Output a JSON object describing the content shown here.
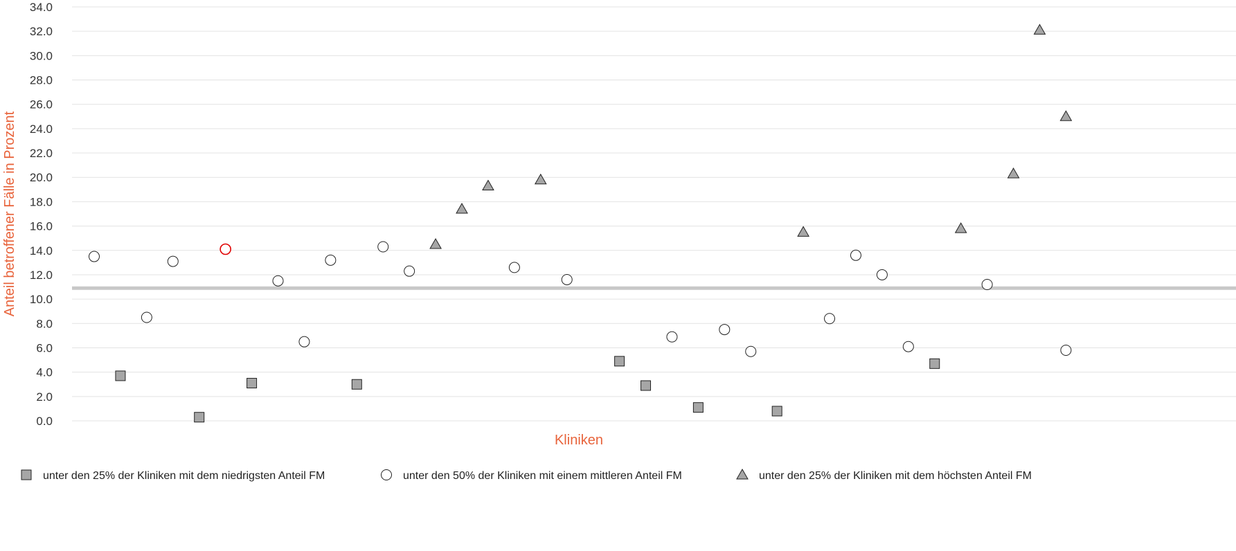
{
  "chart_data": {
    "type": "scatter",
    "title": "",
    "xlabel": "Kliniken",
    "ylabel": "Anteil betroffener Fälle in Prozent",
    "ylim": [
      0,
      34
    ],
    "yticks": [
      "0.0",
      "2.0",
      "4.0",
      "6.0",
      "8.0",
      "10.0",
      "12.0",
      "14.0",
      "16.0",
      "18.0",
      "20.0",
      "22.0",
      "24.0",
      "26.0",
      "28.0",
      "30.0",
      "32.0",
      "34.0"
    ],
    "grid": true,
    "reference_line": {
      "y": 10.9,
      "color": "#C8C8C8"
    },
    "highlight": {
      "x": 6,
      "y": 14.1,
      "color": "#E00000"
    },
    "legend_position": "bottom",
    "series": [
      {
        "name": "unter den 25% der Kliniken mit dem niedrigsten Anteil FM",
        "marker": "square",
        "fill": "#A6A6A6",
        "x": [
          2,
          5,
          7,
          11,
          21,
          22,
          24,
          27,
          33
        ],
        "values": [
          3.7,
          0.3,
          3.1,
          3.0,
          4.9,
          2.9,
          1.1,
          0.8,
          4.7
        ]
      },
      {
        "name": "unter den 50% der Kliniken mit einem mittleren Anteil FM",
        "marker": "circle",
        "fill": "#FFFFFF",
        "x": [
          1,
          3,
          4,
          6,
          8,
          9,
          10,
          12,
          13,
          17,
          19,
          23,
          25,
          26,
          29,
          30,
          31,
          32,
          35,
          38
        ],
        "values": [
          13.5,
          8.5,
          13.1,
          14.1,
          11.5,
          6.5,
          13.2,
          14.3,
          12.3,
          12.6,
          11.6,
          6.9,
          7.5,
          5.7,
          8.4,
          13.6,
          12.0,
          6.1,
          11.2,
          5.8
        ]
      },
      {
        "name": "unter den 25% der Kliniken mit dem höchsten Anteil FM",
        "marker": "triangle",
        "fill": "#A6A6A6",
        "x": [
          14,
          15,
          16,
          18,
          28,
          34,
          36,
          37,
          38
        ],
        "values": [
          14.5,
          17.4,
          19.3,
          19.8,
          15.5,
          15.8,
          20.3,
          32.1,
          25.0
        ]
      }
    ]
  }
}
